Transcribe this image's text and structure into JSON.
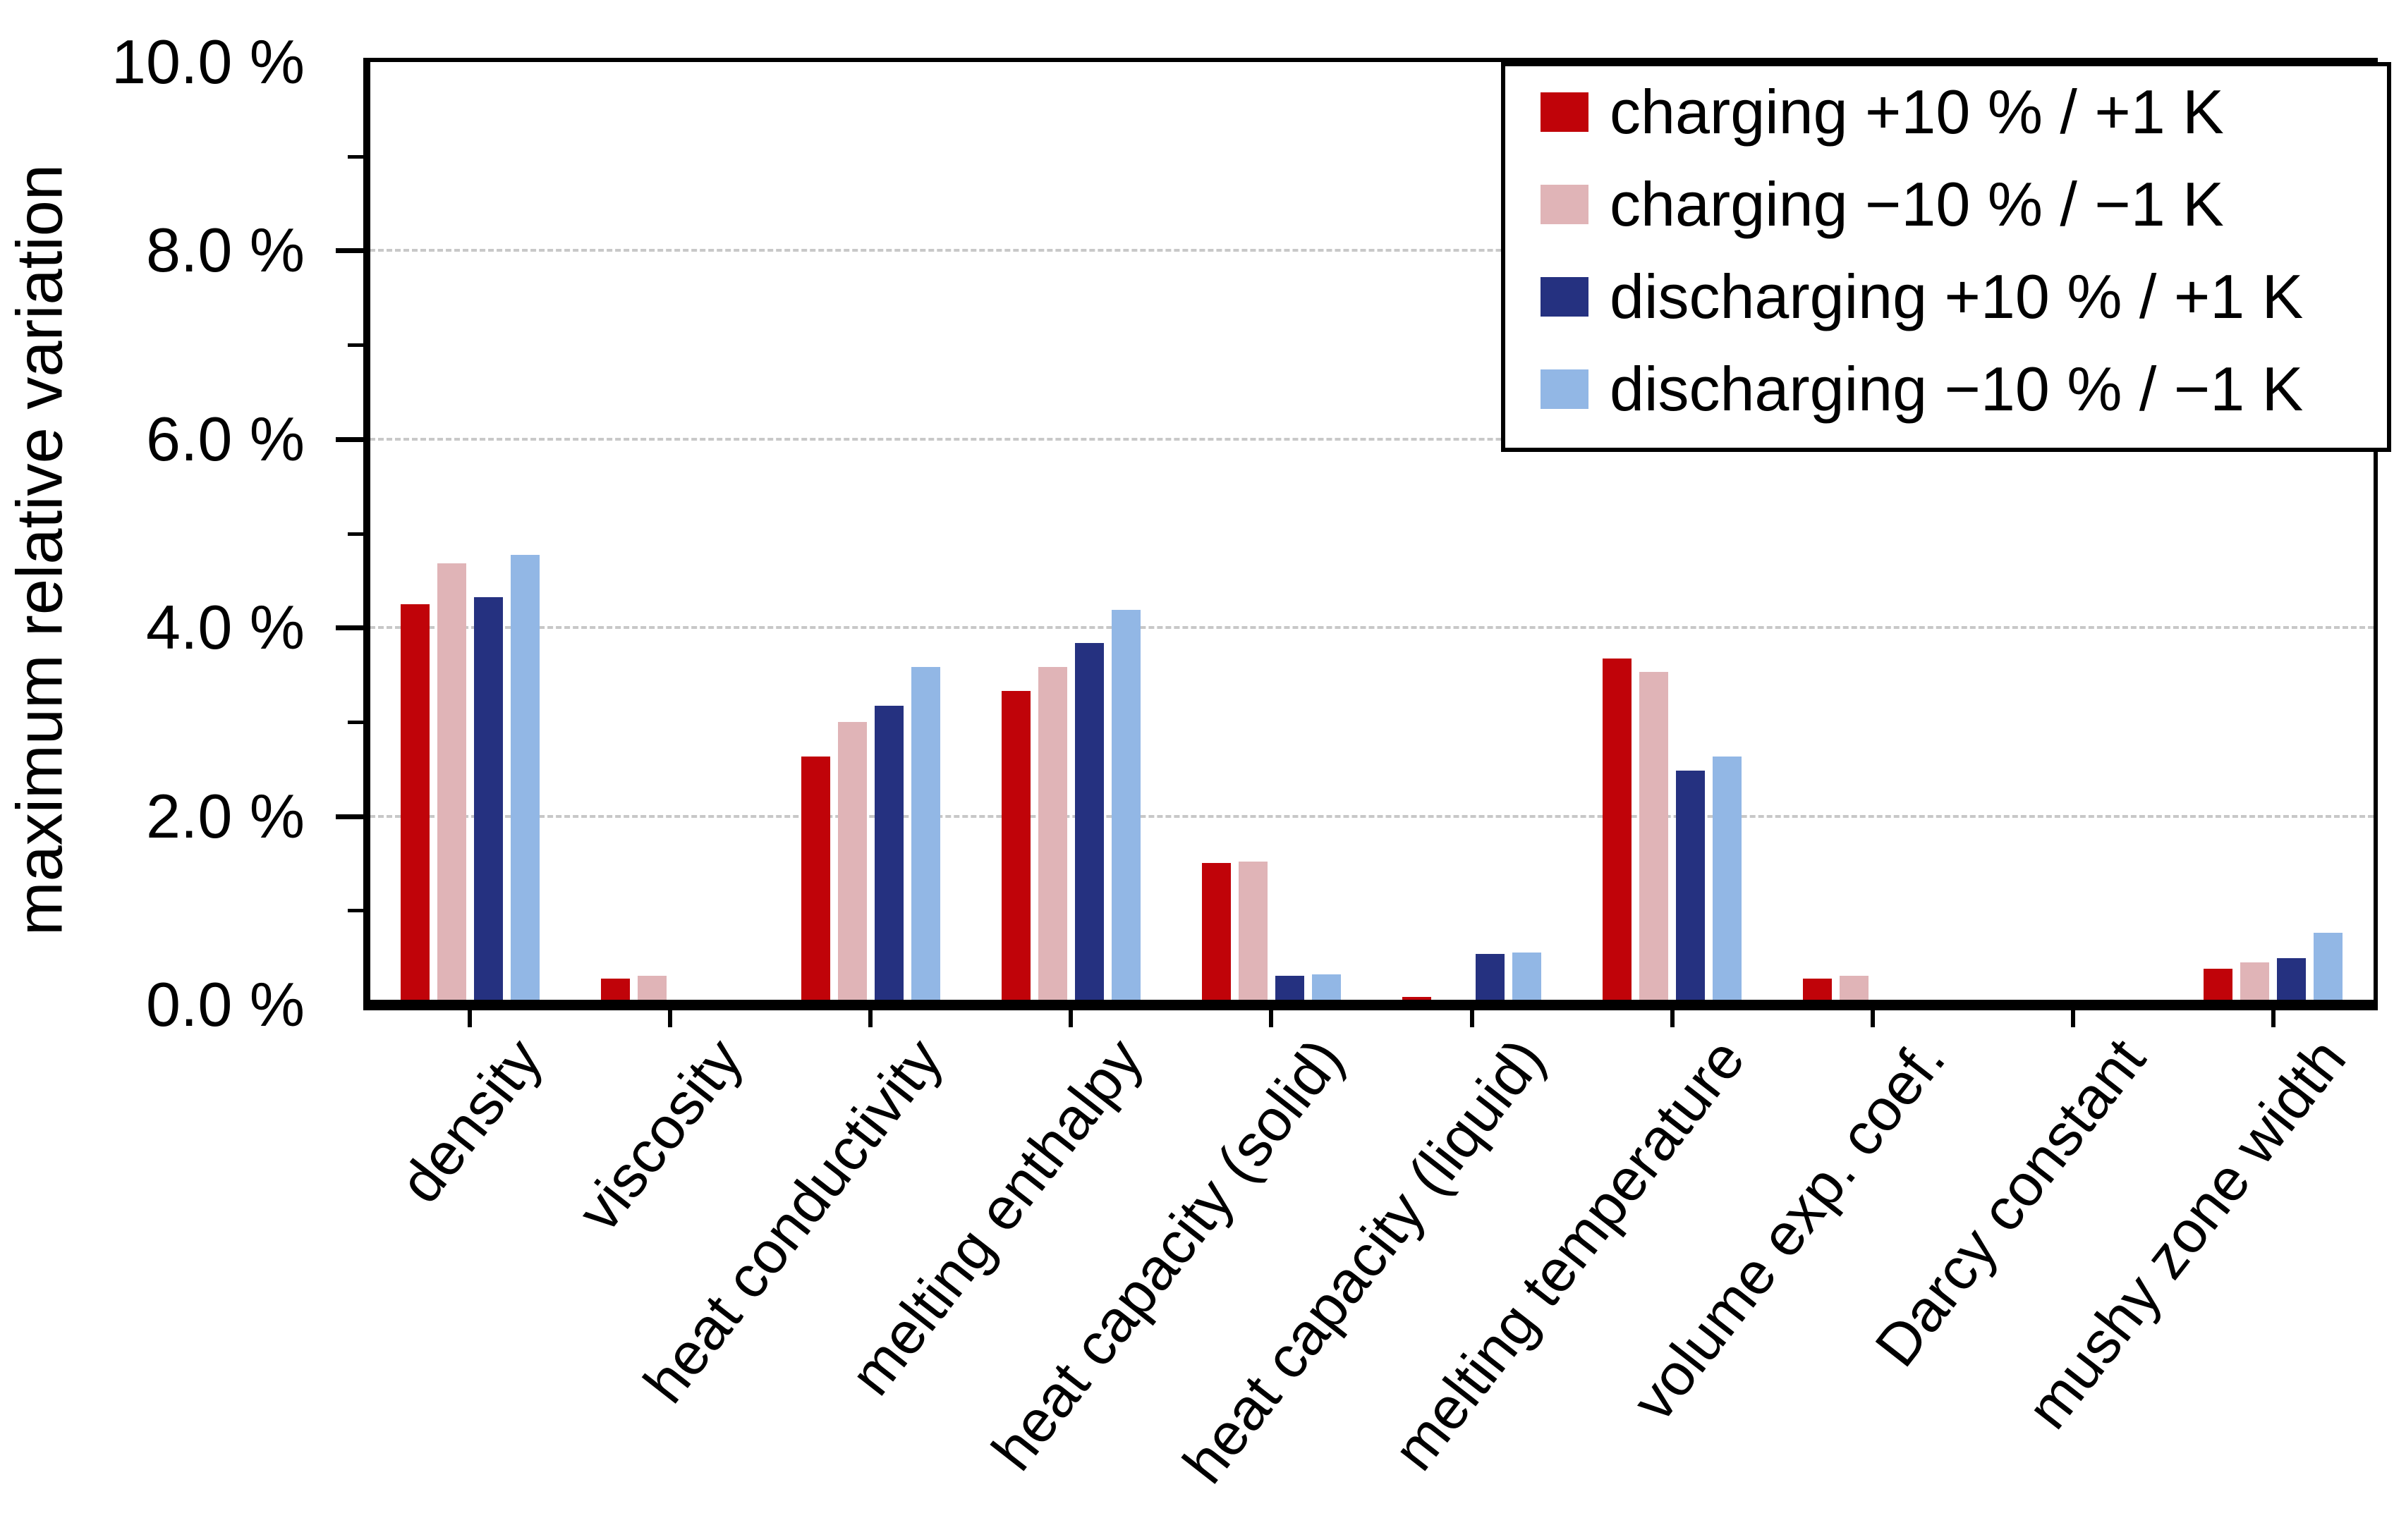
{
  "chart_data": {
    "type": "bar",
    "title": "",
    "ylabel": "maximum relative variation",
    "xlabel": "",
    "ylim": [
      0,
      10
    ],
    "ytick_major_step": 2,
    "ytick_minor_step": 1,
    "ytick_labels": [
      "0.0 %",
      "2.0 %",
      "4.0 %",
      "6.0 %",
      "8.0 %",
      "10.0 %"
    ],
    "grid": {
      "axis": "y",
      "values": [
        2,
        4,
        6,
        8
      ],
      "style": "dashed",
      "color": "#c8c8c8"
    },
    "legend_position": "top-right-inside-box",
    "categories": [
      "density",
      "viscosity",
      "heat conductivity",
      "melting enthalpy",
      "heat capacity (solid)",
      "heat capacity (liquid)",
      "melting temperature",
      "volume exp. coef.",
      "Darcy constant",
      "mushy zone width"
    ],
    "series": [
      {
        "name": "charging +10 % / +1 K",
        "color": "#c00309",
        "values": [
          4.25,
          0.28,
          2.63,
          3.33,
          1.5,
          0.08,
          3.67,
          0.28,
          0.0,
          0.38
        ]
      },
      {
        "name": "charging −10 % / −1 K",
        "color": "#e0b4b7",
        "values": [
          4.68,
          0.31,
          3.0,
          3.58,
          1.52,
          0.05,
          3.53,
          0.31,
          0.0,
          0.45
        ]
      },
      {
        "name": "discharging +10 % / +1 K",
        "color": "#253180",
        "values": [
          4.32,
          0.05,
          3.17,
          3.84,
          0.31,
          0.54,
          2.48,
          0.04,
          0.0,
          0.49
        ]
      },
      {
        "name": "discharging −10 % / −1 K",
        "color": "#92b7e5",
        "values": [
          4.77,
          0.04,
          3.58,
          4.19,
          0.32,
          0.55,
          2.63,
          0.03,
          0.0,
          0.76
        ]
      }
    ]
  }
}
